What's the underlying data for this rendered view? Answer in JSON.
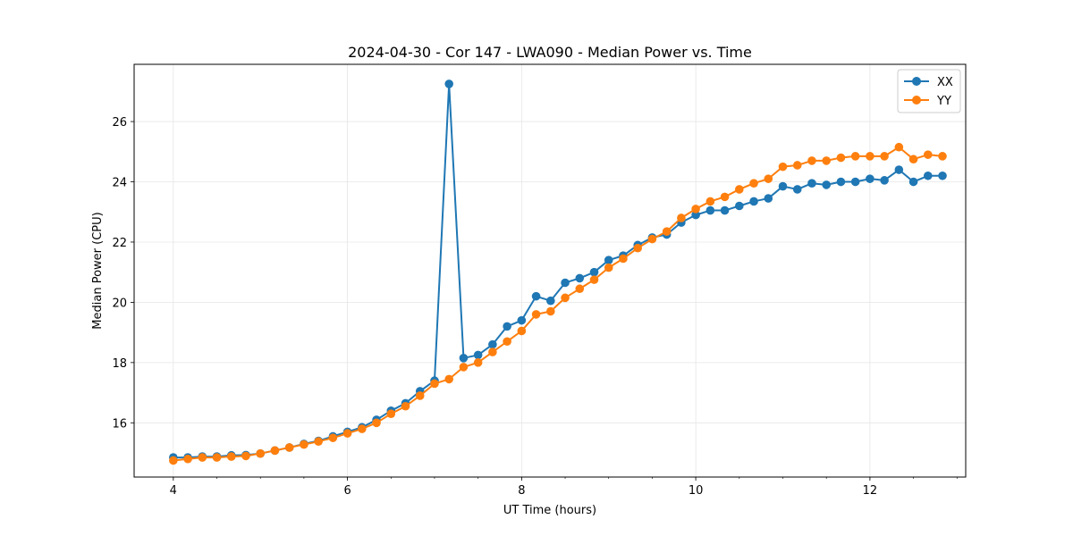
{
  "chart_data": {
    "type": "line",
    "title": "2024-04-30 - Cor 147 - LWA090 - Median Power vs. Time",
    "xlabel": "UT Time (hours)",
    "ylabel": "Median Power (CPU)",
    "xlim": [
      3.55,
      13.1
    ],
    "ylim": [
      14.2,
      27.9
    ],
    "xticks": [
      4,
      6,
      8,
      10,
      12
    ],
    "yticks": [
      16,
      18,
      20,
      22,
      24,
      26
    ],
    "x_minor_step": 0.5,
    "grid": true,
    "legend_position": "top-right",
    "x": [
      4.0,
      4.1667,
      4.3333,
      4.5,
      4.6667,
      4.8333,
      5.0,
      5.1667,
      5.3333,
      5.5,
      5.6667,
      5.8333,
      6.0,
      6.1667,
      6.3333,
      6.5,
      6.6667,
      6.8333,
      7.0,
      7.1667,
      7.3333,
      7.5,
      7.6667,
      7.8333,
      8.0,
      8.1667,
      8.3333,
      8.5,
      8.6667,
      8.8333,
      9.0,
      9.1667,
      9.3333,
      9.5,
      9.6667,
      9.8333,
      10.0,
      10.1667,
      10.3333,
      10.5,
      10.6667,
      10.8333,
      11.0,
      11.1667,
      11.3333,
      11.5,
      11.6667,
      11.8333,
      12.0,
      12.1667,
      12.3333,
      12.5,
      12.6667,
      12.8333
    ],
    "series": [
      {
        "name": "XX",
        "color": "#1f77b4",
        "values": [
          14.85,
          14.85,
          14.88,
          14.88,
          14.92,
          14.93,
          14.98,
          15.08,
          15.18,
          15.3,
          15.4,
          15.55,
          15.7,
          15.85,
          16.1,
          16.4,
          16.65,
          17.05,
          17.4,
          27.25,
          18.15,
          18.25,
          18.6,
          19.2,
          19.4,
          20.2,
          20.05,
          20.65,
          20.8,
          21.0,
          21.4,
          21.55,
          21.9,
          22.15,
          22.25,
          22.65,
          22.9,
          23.05,
          23.05,
          23.2,
          23.35,
          23.45,
          23.85,
          23.75,
          23.95,
          23.9,
          24.0,
          24.0,
          24.1,
          24.05,
          24.4,
          24.0,
          24.2,
          24.2
        ]
      },
      {
        "name": "YY",
        "color": "#ff7f0e",
        "values": [
          14.75,
          14.8,
          14.85,
          14.85,
          14.88,
          14.9,
          14.98,
          15.08,
          15.18,
          15.28,
          15.38,
          15.5,
          15.65,
          15.8,
          16.0,
          16.3,
          16.55,
          16.9,
          17.3,
          17.45,
          17.85,
          18.0,
          18.35,
          18.7,
          19.05,
          19.6,
          19.7,
          20.15,
          20.45,
          20.75,
          21.15,
          21.45,
          21.8,
          22.1,
          22.35,
          22.8,
          23.1,
          23.35,
          23.5,
          23.75,
          23.95,
          24.1,
          24.5,
          24.55,
          24.7,
          24.7,
          24.8,
          24.85,
          24.85,
          24.85,
          25.15,
          24.75,
          24.9,
          24.85
        ]
      }
    ]
  }
}
